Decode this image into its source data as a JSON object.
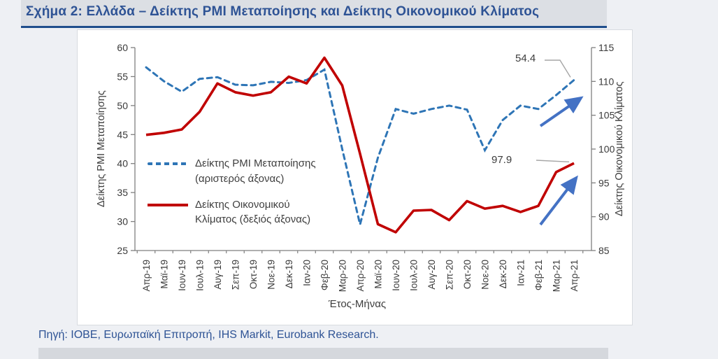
{
  "header": {
    "title": "Σχήμα 2: Ελλάδα – Δείκτης PMI Μεταποίησης και Δείκτης Οικονομικού Κλίματος"
  },
  "source": {
    "text": "Πηγή: ΙΟΒΕ, Ευρωπαϊκή Επιτροπή, IHS Markit, Eurobank Research."
  },
  "colors": {
    "pmi_line": "#2e75b6",
    "esi_line": "#c00000",
    "arrow_blue": "#4472c4",
    "leader_gray": "#a6a6a6",
    "axis_gray": "#7f7f7f",
    "title_navy": "#2e5395"
  },
  "chart_data": {
    "type": "line",
    "title": "",
    "xlabel": "Έτος-Μήνας",
    "grid": false,
    "legend_position": "inside-left",
    "categories": [
      "Απρ-19",
      "Μαϊ-19",
      "Ιουν-19",
      "Ιουλ-19",
      "Αυγ-19",
      "Σεπ-19",
      "Οκτ-19",
      "Νοε-19",
      "Δεκ-19",
      "Ιαν-20",
      "Φεβ-20",
      "Μαρ-20",
      "Απρ-20",
      "Μαϊ-20",
      "Ιουν-20",
      "Ιουλ-20",
      "Αυγ-20",
      "Σεπ-20",
      "Οκτ-20",
      "Νοε-20",
      "Δεκ-20",
      "Ιαν-21",
      "Φεβ-21",
      "Μαρ-21",
      "Απρ-21"
    ],
    "left_axis": {
      "label": "Δείκτης PMI Μεταποίησης",
      "min": 25,
      "max": 60,
      "step": 5
    },
    "right_axis": {
      "label": "Δείκτης Οικονομικού Κλίματος",
      "min": 85,
      "max": 115,
      "step": 5
    },
    "series": [
      {
        "name": "Δείκτης PMI Μεταποίησης",
        "legend_lines": [
          "Δείκτης PMI Μεταποίησης",
          "(αριστερός άξονας)"
        ],
        "axis": "left",
        "color": "#2e75b6",
        "line_style": "dashed",
        "values": [
          56.6,
          54.2,
          52.4,
          54.6,
          54.9,
          53.6,
          53.5,
          54.1,
          53.9,
          54.4,
          56.2,
          42.5,
          29.5,
          41.0,
          49.4,
          48.6,
          49.4,
          50.0,
          49.3,
          42.3,
          47.5,
          50.0,
          49.4,
          51.8,
          54.4
        ]
      },
      {
        "name": "Δείκτης Οικονομικού Κλίματος",
        "legend_lines": [
          "Δείκτης Οικονομικού",
          "Κλίματος (δεξιός άξονας)"
        ],
        "axis": "right",
        "color": "#c00000",
        "line_style": "solid",
        "values": [
          102.1,
          102.4,
          102.9,
          105.5,
          109.7,
          108.4,
          107.9,
          108.4,
          110.7,
          109.7,
          113.5,
          109.4,
          99.3,
          88.9,
          87.7,
          90.9,
          91.0,
          89.5,
          92.3,
          91.2,
          91.6,
          90.7,
          91.6,
          96.6,
          97.9
        ]
      }
    ],
    "annotations": [
      {
        "text": "54.4",
        "series": "Δείκτης PMI Μεταποίησης",
        "category": "Απρ-21"
      },
      {
        "text": "97.9",
        "series": "Δείκτης Οικονομικού Κλίματος",
        "category": "Απρ-21"
      }
    ]
  }
}
